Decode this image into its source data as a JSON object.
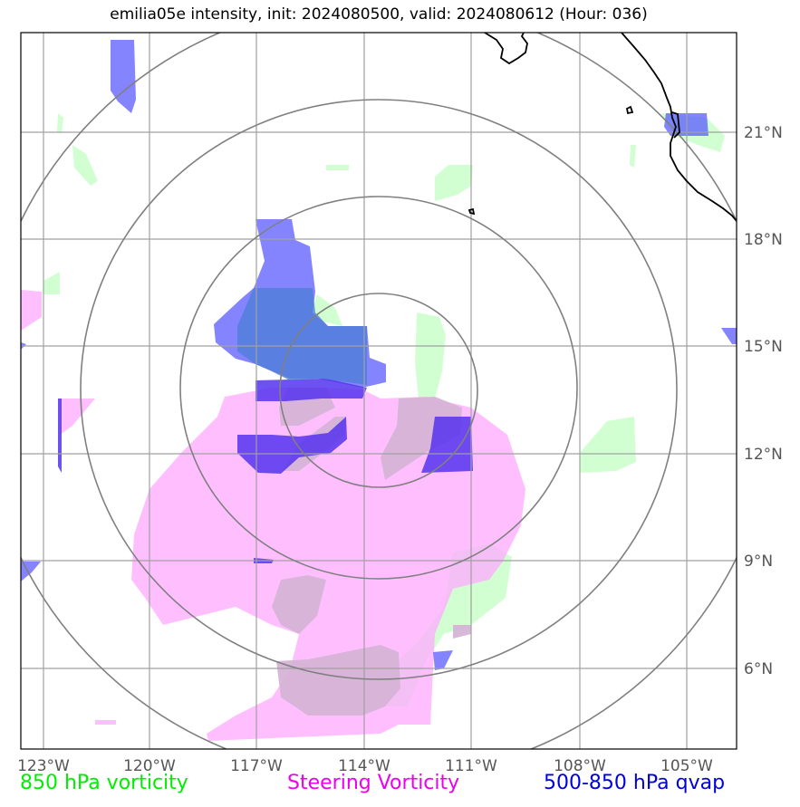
{
  "title": "emilia05e intensity, init: 2024080500, valid: 2024080612 (Hour: 036)",
  "map": {
    "lon_ticks": [
      "123°W",
      "120°W",
      "117°W",
      "114°W",
      "111°W",
      "108°W",
      "105°W"
    ],
    "lat_ticks": [
      "21°N",
      "18°N",
      "15°N",
      "12°N",
      "9°N",
      "6°N"
    ],
    "colors": {
      "vort850": "#ccffcc",
      "steering": "#ffaaff",
      "overlap": "#d6b4d6",
      "qvap": "#5b5bff",
      "qvap_dark": "#5533ee",
      "grid": "#a0a0a0",
      "rings": "#808080",
      "coast": "#000000"
    }
  },
  "legend": [
    {
      "label": "850 hPa vorticity",
      "color": "#00ee00"
    },
    {
      "label": "Steering Vorticity",
      "color": "#ee00ee"
    },
    {
      "label": "500-850 hPa qvap",
      "color": "#0000dd"
    }
  ]
}
